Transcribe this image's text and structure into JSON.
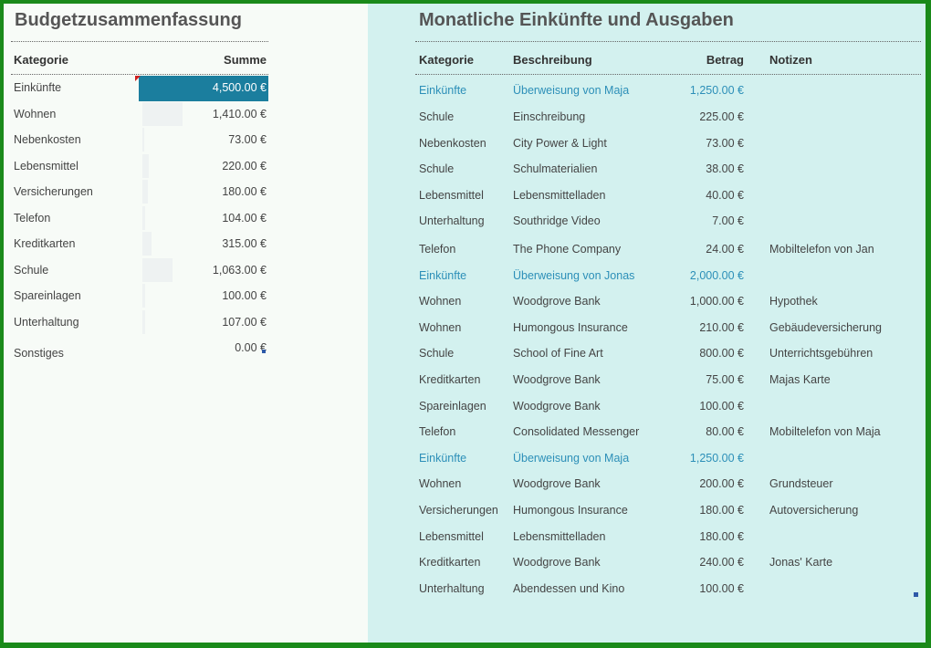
{
  "summary": {
    "title": "Budgetzusammenfassung",
    "col_category": "Kategorie",
    "col_sum": "Summe",
    "rows": [
      {
        "category": "Einkünfte",
        "sum": "4,500.00 €",
        "value": 4500
      },
      {
        "category": "Wohnen",
        "sum": "1,410.00 €",
        "value": 1410
      },
      {
        "category": "Nebenkosten",
        "sum": "73.00 €",
        "value": 73
      },
      {
        "category": "Lebensmittel",
        "sum": "220.00 €",
        "value": 220
      },
      {
        "category": "Versicherungen",
        "sum": "180.00 €",
        "value": 180
      },
      {
        "category": "Telefon",
        "sum": "104.00 €",
        "value": 104
      },
      {
        "category": "Kreditkarten",
        "sum": "315.00 €",
        "value": 315
      },
      {
        "category": "Schule",
        "sum": "1,063.00 €",
        "value": 1063
      },
      {
        "category": "Spareinlagen",
        "sum": "100.00 €",
        "value": 100
      },
      {
        "category": "Unterhaltung",
        "sum": "107.00 €",
        "value": 107
      },
      {
        "category": "Sonstiges",
        "sum": "0.00 €",
        "value": 0
      }
    ]
  },
  "monthly": {
    "title": "Monatliche Einkünfte und Ausgaben",
    "col_category": "Kategorie",
    "col_description": "Beschreibung",
    "col_amount": "Betrag",
    "col_notes": "Notizen",
    "rows": [
      {
        "category": "Einkünfte",
        "description": "Überweisung von Maja",
        "amount": "1,250.00 €",
        "notes": "",
        "income": true
      },
      {
        "category": "Schule",
        "description": "Einschreibung",
        "amount": "225.00 €",
        "notes": "",
        "income": false
      },
      {
        "category": "Nebenkosten",
        "description": "City Power & Light",
        "amount": "73.00 €",
        "notes": "",
        "income": false
      },
      {
        "category": "Schule",
        "description": "Schulmaterialien",
        "amount": "38.00 €",
        "notes": "",
        "income": false
      },
      {
        "category": "Lebensmittel",
        "description": "Lebensmittelladen",
        "amount": "40.00 €",
        "notes": "",
        "income": false
      },
      {
        "category": "Unterhaltung",
        "description": "Southridge Video",
        "amount": "7.00 €",
        "notes": "",
        "income": false
      },
      {
        "category": "Telefon",
        "description": "The Phone Company",
        "amount": "24.00 €",
        "notes": "Mobiltelefon von Jan",
        "income": false
      },
      {
        "category": "Einkünfte",
        "description": "Überweisung von Jonas",
        "amount": "2,000.00 €",
        "notes": "",
        "income": true
      },
      {
        "category": "Wohnen",
        "description": "Woodgrove Bank",
        "amount": "1,000.00 €",
        "notes": "Hypothek",
        "income": false
      },
      {
        "category": "Wohnen",
        "description": "Humongous Insurance",
        "amount": "210.00 €",
        "notes": "Gebäudeversicherung",
        "income": false
      },
      {
        "category": "Schule",
        "description": "School of Fine Art",
        "amount": "800.00 €",
        "notes": "Unterrichtsgebühren",
        "income": false
      },
      {
        "category": "Kreditkarten",
        "description": "Woodgrove Bank",
        "amount": "75.00 €",
        "notes": "Majas Karte",
        "income": false
      },
      {
        "category": "Spareinlagen",
        "description": "Woodgrove Bank",
        "amount": "100.00 €",
        "notes": "",
        "income": false
      },
      {
        "category": "Telefon",
        "description": "Consolidated Messenger",
        "amount": "80.00 €",
        "notes": "Mobiltelefon von Maja",
        "income": false
      },
      {
        "category": "Einkünfte",
        "description": "Überweisung von Maja",
        "amount": "1,250.00 €",
        "notes": "",
        "income": true
      },
      {
        "category": "Wohnen",
        "description": "Woodgrove Bank",
        "amount": "200.00 €",
        "notes": "Grundsteuer",
        "income": false
      },
      {
        "category": "Versicherungen",
        "description": "Humongous Insurance",
        "amount": "180.00 €",
        "notes": "Autoversicherung",
        "income": false
      },
      {
        "category": "Lebensmittel",
        "description": "Lebensmittelladen",
        "amount": "180.00 €",
        "notes": "",
        "income": false
      },
      {
        "category": "Kreditkarten",
        "description": "Woodgrove Bank",
        "amount": "240.00 €",
        "notes": "Jonas' Karte",
        "income": false
      },
      {
        "category": "Unterhaltung",
        "description": "Abendessen und Kino",
        "amount": "100.00 €",
        "notes": "",
        "income": false
      }
    ]
  },
  "colors": {
    "frame": "#1a8a1a",
    "left_bg": "#f7fbf7",
    "right_bg": "#d3f1ef",
    "highlight": "#1b7e9e",
    "income_text": "#2c8fb8",
    "comment_marker": "#d01f1f",
    "handle": "#2d59a8"
  },
  "icons": {
    "comment_marker": "comment-marker-icon",
    "resize_handle": "resize-handle-icon"
  }
}
